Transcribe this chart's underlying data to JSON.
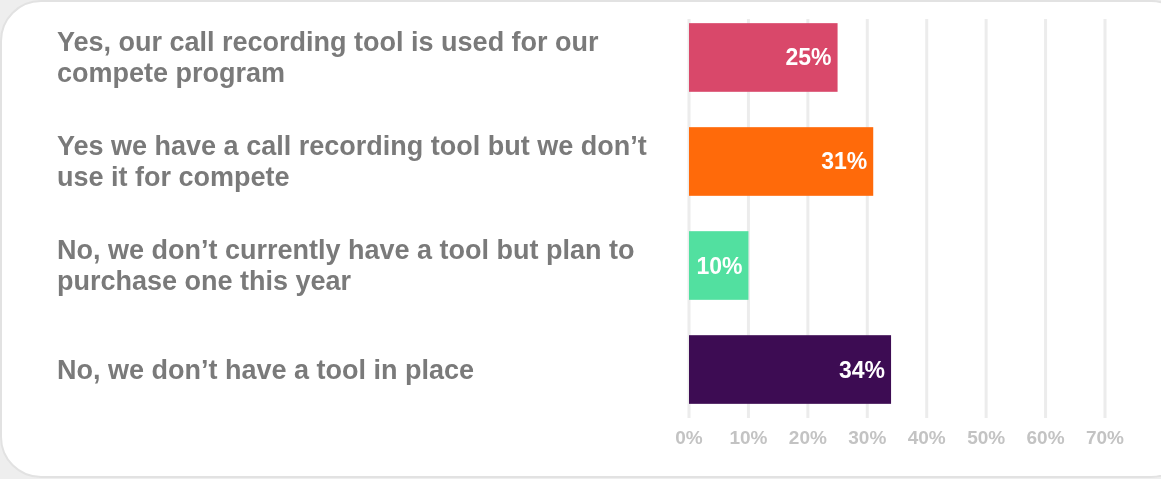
{
  "chart_data": {
    "type": "bar",
    "orientation": "horizontal",
    "categories": [
      "Yes, our call recording tool is used for our compete program",
      "Yes we have a call recording tool but we don’t use it for compete",
      "No, we don’t currently have a tool but plan to purchase one this year",
      "No, we don’t have a tool in place"
    ],
    "values": [
      25,
      31,
      10,
      34
    ],
    "colors": [
      "#d9486a",
      "#ff6a0a",
      "#52e0a0",
      "#3d0c53"
    ],
    "xlim": [
      0,
      70
    ],
    "xticks": [
      {
        "value": 0,
        "label": "0%"
      },
      {
        "value": 10,
        "label": "10%"
      },
      {
        "value": 20,
        "label": "20%"
      },
      {
        "value": 30,
        "label": "30%"
      },
      {
        "value": 40,
        "label": "40%"
      },
      {
        "value": 50,
        "label": "50%"
      },
      {
        "value": 60,
        "label": "60%"
      },
      {
        "value": 70,
        "label": "70%"
      }
    ],
    "value_labels": [
      "25%",
      "31%",
      "10%",
      "34%"
    ],
    "grid": "x"
  }
}
